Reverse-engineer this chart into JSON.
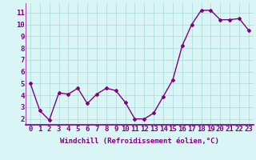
{
  "x": [
    0,
    1,
    2,
    3,
    4,
    5,
    6,
    7,
    8,
    9,
    10,
    11,
    12,
    13,
    14,
    15,
    16,
    17,
    18,
    19,
    20,
    21,
    22,
    23
  ],
  "y": [
    5.0,
    2.7,
    1.9,
    4.2,
    4.1,
    4.6,
    3.3,
    4.1,
    4.6,
    4.4,
    3.4,
    2.0,
    2.0,
    2.5,
    3.9,
    5.3,
    8.2,
    10.0,
    11.2,
    11.2,
    10.4,
    10.4,
    10.5,
    9.5
  ],
  "line_color": "#800080",
  "marker": "D",
  "marker_size": 2,
  "bg_color": "#d9f5f5",
  "grid_color": "#b0dede",
  "axis_color": "#800080",
  "xlabel": "Windchill (Refroidissement éolien,°C)",
  "xlabel_fontsize": 6.5,
  "xtick_labels": [
    "0",
    "1",
    "2",
    "3",
    "4",
    "5",
    "6",
    "7",
    "8",
    "9",
    "10",
    "11",
    "12",
    "13",
    "14",
    "15",
    "16",
    "17",
    "18",
    "19",
    "20",
    "21",
    "22",
    "23"
  ],
  "ytick_values": [
    2,
    3,
    4,
    5,
    6,
    7,
    8,
    9,
    10,
    11
  ],
  "ylim": [
    1.5,
    11.8
  ],
  "xlim": [
    -0.5,
    23.5
  ],
  "tick_fontsize": 6.5,
  "line_width": 1.0
}
